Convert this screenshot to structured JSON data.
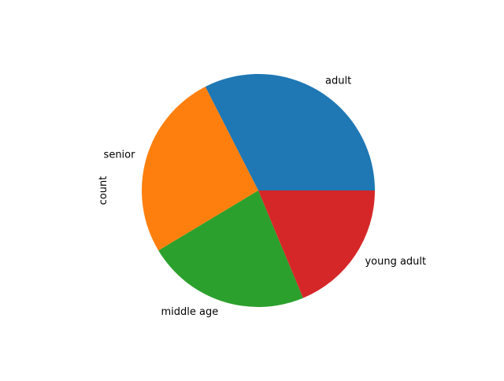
{
  "chart_data": {
    "type": "pie",
    "ylabel": "count",
    "categories": [
      "adult",
      "senior",
      "middle age",
      "young adult"
    ],
    "values": [
      33,
      26.5,
      23,
      19
    ],
    "colors": [
      "#1f77b4",
      "#ff7f0e",
      "#2ca02c",
      "#d62728"
    ],
    "start_angle_deg": 0,
    "direction": "counterclockwise"
  }
}
